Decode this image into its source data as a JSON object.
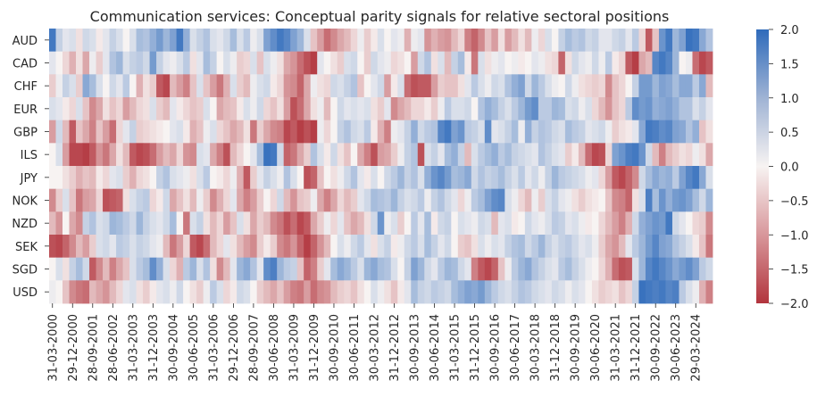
{
  "chart_data": {
    "type": "heatmap",
    "title": "Communication services: Conceptual parity signals for relative sectoral positions",
    "xlabel": "",
    "ylabel": "",
    "rows": [
      "AUD",
      "CAD",
      "CHF",
      "EUR",
      "GBP",
      "ILS",
      "JPY",
      "NOK",
      "NZD",
      "SEK",
      "SGD",
      "USD"
    ],
    "x_tick_labels": [
      "31-03-2000",
      "29-12-2000",
      "28-09-2001",
      "28-06-2002",
      "31-03-2003",
      "31-12-2003",
      "30-09-2004",
      "30-06-2005",
      "31-03-2006",
      "29-12-2006",
      "28-09-2007",
      "30-06-2008",
      "31-03-2009",
      "31-12-2009",
      "30-09-2010",
      "30-06-2011",
      "30-03-2012",
      "31-12-2012",
      "30-09-2013",
      "30-06-2014",
      "31-03-2015",
      "31-12-2015",
      "30-09-2016",
      "30-06-2017",
      "30-03-2018",
      "31-12-2018",
      "30-09-2019",
      "30-06-2020",
      "31-03-2021",
      "31-12-2021",
      "30-09-2022",
      "30-06-2023",
      "29-03-2024"
    ],
    "colorbar": {
      "ticks": [
        2.0,
        1.5,
        1.0,
        0.5,
        0.0,
        -0.5,
        -1.0,
        -1.5,
        -2.0
      ],
      "tick_labels": [
        "2.0",
        "1.5",
        "1.0",
        "0.5",
        "0.0",
        "−0.5",
        "−1.0",
        "−1.5",
        "−2.0"
      ],
      "vmin": -2.0,
      "vmax": 2.0
    },
    "colormap": {
      "low": "#b2343d",
      "mid": "#f7f3f2",
      "high": "#2f6bbb"
    },
    "num_columns": 99,
    "values": [
      [
        1.8,
        0.5,
        0.2,
        0.3,
        -0.2,
        0.4,
        0.3,
        -0.1,
        0.2,
        0.5,
        0.3,
        0.0,
        0.3,
        0.8,
        0.7,
        1.0,
        1.3,
        0.9,
        1.2,
        1.8,
        1.0,
        0.3,
        0.5,
        0.7,
        0.3,
        0.2,
        0.4,
        0.8,
        0.3,
        0.6,
        0.1,
        0.3,
        1.2,
        1.5,
        1.8,
        1.6,
        1.2,
        0.9,
        0.3,
        -0.5,
        -0.9,
        -1.4,
        -1.1,
        -0.8,
        -0.6,
        -0.3,
        0.1,
        -0.4,
        -0.1,
        0.3,
        0.0,
        0.2,
        0.1,
        -0.7,
        0.1,
        0.2,
        -1.0,
        -0.7,
        -0.9,
        -1.0,
        -0.6,
        -0.3,
        -1.2,
        -1.5,
        -1.1,
        -0.5,
        -0.9,
        -0.2,
        -0.9,
        -0.6,
        -0.2,
        -0.6,
        0.1,
        -0.3,
        0.3,
        0.0,
        0.5,
        0.8,
        0.6,
        0.7,
        0.4,
        0.5,
        0.2,
        0.2,
        0.4,
        0.5,
        0.2,
        0.6,
        -0.3,
        -1.6,
        -0.5,
        1.4,
        1.8,
        0.9,
        1.2,
        1.9,
        1.8,
        1.1,
        0.7
      ],
      [
        0.2,
        0.0,
        -0.3,
        -0.7,
        -0.2,
        -0.8,
        0.1,
        -0.4,
        0.2,
        0.7,
        0.9,
        0.3,
        0.5,
        0.6,
        0.4,
        1.3,
        0.5,
        0.2,
        0.1,
        0.3,
        0.6,
        -0.2,
        0.2,
        0.8,
        0.5,
        0.0,
        0.3,
        0.1,
        -0.4,
        -0.3,
        0.3,
        -0.5,
        0.3,
        0.1,
        -0.2,
        -0.8,
        -1.0,
        -1.4,
        -1.7,
        -1.9,
        0.2,
        0.0,
        -0.2,
        -0.4,
        0.3,
        0.4,
        0.0,
        -0.4,
        0.4,
        0.2,
        0.1,
        -0.3,
        -0.2,
        0.0,
        -0.9,
        0.4,
        0.7,
        -0.2,
        0.3,
        -0.6,
        0.5,
        0.8,
        -0.1,
        -1.3,
        0.3,
        -0.2,
        0.1,
        0.2,
        0.0,
        0.1,
        -0.1,
        0.0,
        0.2,
        0.1,
        -0.2,
        -0.3,
        -1.5,
        -0.2,
        0.4,
        0.2,
        0.1,
        0.4,
        0.1,
        0.6,
        -0.1,
        -0.3,
        -1.6,
        -1.9,
        -0.8,
        -0.6,
        1.6,
        1.8,
        1.6,
        0.9,
        0.0,
        0.1,
        -1.4,
        -1.8,
        -1.6
      ],
      [
        -0.4,
        0.1,
        0.5,
        0.3,
        -0.4,
        1.1,
        0.8,
        0.3,
        0.0,
        0.4,
        0.2,
        0.6,
        0.0,
        -0.7,
        -0.2,
        -0.4,
        -1.6,
        -1.8,
        -0.6,
        -0.9,
        -1.2,
        -0.5,
        0.3,
        -0.5,
        -0.9,
        -1.3,
        -0.7,
        0.3,
        -0.4,
        -0.6,
        0.1,
        0.3,
        0.4,
        -0.1,
        -0.3,
        -1.0,
        -1.1,
        -1.5,
        -0.8,
        0.1,
        -0.2,
        -0.3,
        0.4,
        0.3,
        0.5,
        0.7,
        -0.5,
        0.0,
        0.2,
        0.4,
        -0.9,
        -0.1,
        0.3,
        -1.4,
        -1.7,
        -1.6,
        -1.6,
        -0.9,
        -0.4,
        -0.5,
        -0.5,
        -0.2,
        0.2,
        0.6,
        0.3,
        0.1,
        0.4,
        0.3,
        0.7,
        1.0,
        1.2,
        0.4,
        0.9,
        0.6,
        0.3,
        0.1,
        0.0,
        0.4,
        0.1,
        -0.2,
        -0.3,
        -0.4,
        -0.3,
        -1.1,
        -0.5,
        -0.3,
        0.0,
        0.5,
        1.3,
        1.3,
        0.9,
        1.2,
        1.1,
        0.8,
        1.1,
        1.1,
        0.6,
        1.1,
        -0.6
      ],
      [
        0.3,
        0.2,
        -0.1,
        -0.3,
        0.3,
        -0.5,
        -1.1,
        -0.8,
        -0.2,
        -0.5,
        -0.3,
        -0.9,
        -0.6,
        -0.3,
        -0.2,
        0.3,
        -0.4,
        -0.6,
        0.2,
        -0.1,
        -0.3,
        -0.5,
        -0.4,
        0.3,
        0.0,
        -0.8,
        -0.6,
        -0.5,
        -0.1,
        0.3,
        0.1,
        0.4,
        -0.3,
        -0.5,
        -0.2,
        -0.9,
        -1.7,
        -1.4,
        -0.8,
        -0.2,
        0.1,
        -0.6,
        0.0,
        0.4,
        0.2,
        0.3,
        0.2,
        0.3,
        -0.2,
        -0.4,
        0.2,
        -1.1,
        -0.8,
        -0.6,
        -0.3,
        -0.3,
        -0.1,
        -0.4,
        0.1,
        0.6,
        0.3,
        0.3,
        0.4,
        0.0,
        0.7,
        1.0,
        0.8,
        0.5,
        0.3,
        0.6,
        0.9,
        1.3,
        1.5,
        0.6,
        0.6,
        0.9,
        0.8,
        0.3,
        0.4,
        0.1,
        0.3,
        -0.3,
        -0.6,
        -1.0,
        -0.5,
        -0.3,
        0.6,
        1.5,
        1.3,
        1.4,
        1.0,
        1.1,
        1.2,
        1.0,
        0.7,
        0.7,
        0.3,
        0.5,
        0.2
      ],
      [
        -0.9,
        0.4,
        -0.6,
        -1.6,
        -0.5,
        -0.8,
        -1.2,
        -0.5,
        -0.9,
        -1.4,
        -0.3,
        0.2,
        0.5,
        -0.4,
        -0.3,
        -0.2,
        -0.1,
        0.0,
        0.2,
        0.3,
        -0.1,
        -0.7,
        -0.5,
        0.1,
        0.3,
        -0.3,
        -0.5,
        -0.8,
        -0.6,
        -0.2,
        -1.3,
        -0.4,
        -0.8,
        -1.1,
        -1.2,
        -1.8,
        -1.6,
        -1.9,
        -1.7,
        -1.9,
        0.1,
        -0.3,
        0.0,
        0.5,
        0.7,
        0.4,
        0.3,
        0.6,
        -0.1,
        -0.7,
        -1.2,
        0.1,
        0.2,
        0.5,
        1.0,
        0.4,
        0.6,
        0.7,
        1.6,
        1.8,
        1.2,
        1.4,
        0.6,
        0.5,
        0.3,
        1.5,
        0.2,
        0.3,
        0.5,
        0.8,
        0.1,
        1.0,
        0.5,
        0.7,
        0.6,
        0.4,
        0.3,
        0.8,
        0.6,
        0.5,
        0.2,
        0.3,
        0.4,
        0.1,
        -0.4,
        -0.2,
        -0.1,
        0.2,
        1.1,
        1.8,
        1.7,
        1.5,
        1.6,
        1.2,
        1.1,
        0.7,
        1.0,
        -0.5,
        -0.2
      ],
      [
        0.0,
        0.3,
        -0.9,
        -1.8,
        -1.8,
        -1.9,
        -1.6,
        -1.0,
        -1.3,
        -0.8,
        -0.2,
        -0.6,
        -1.6,
        -1.8,
        -1.7,
        -1.4,
        -0.9,
        -0.6,
        -0.8,
        -0.3,
        -1.0,
        -1.1,
        0.3,
        0.2,
        -0.8,
        -1.2,
        -1.7,
        -0.6,
        -0.3,
        0.0,
        0.2,
        0.8,
        1.9,
        1.8,
        0.4,
        -1.5,
        -1.3,
        -0.8,
        -0.4,
        0.7,
        0.3,
        -0.1,
        0.4,
        -0.2,
        -0.5,
        0.0,
        -0.8,
        -1.2,
        -1.7,
        -0.9,
        -0.8,
        -0.4,
        0.1,
        0.5,
        0.7,
        -1.7,
        0.3,
        0.5,
        0.2,
        0.8,
        1.0,
        0.5,
        -0.6,
        0.3,
        0.6,
        0.8,
        1.0,
        0.6,
        0.8,
        0.5,
        0.4,
        0.3,
        0.2,
        0.7,
        0.5,
        0.3,
        0.2,
        -0.4,
        -0.1,
        -0.6,
        -1.4,
        -1.8,
        -1.7,
        -0.3,
        1.2,
        1.4,
        1.7,
        1.8,
        1.4,
        0.4,
        -0.6,
        -1.2,
        -0.6,
        -0.4,
        -0.2,
        -0.3,
        0.1,
        -0.2,
        -0.8
      ],
      [
        0.0,
        0.0,
        -0.2,
        -0.4,
        -0.7,
        -0.5,
        -0.6,
        -0.1,
        -0.3,
        0.2,
        0.3,
        -0.4,
        -0.7,
        -0.3,
        -0.2,
        0.0,
        0.5,
        0.7,
        0.3,
        0.2,
        0.1,
        -0.2,
        0.3,
        0.6,
        0.0,
        -0.1,
        -0.3,
        0.1,
        -0.7,
        -1.6,
        -0.4,
        0.2,
        0.5,
        0.3,
        0.1,
        0.7,
        0.3,
        0.0,
        -1.7,
        -1.5,
        -0.5,
        0.0,
        -0.2,
        0.1,
        0.4,
        0.7,
        0.2,
        -0.1,
        0.3,
        0.0,
        0.4,
        0.6,
        0.9,
        0.5,
        0.7,
        0.3,
        1.0,
        1.4,
        1.6,
        1.3,
        0.8,
        0.9,
        1.1,
        0.4,
        0.7,
        0.5,
        0.6,
        0.8,
        0.5,
        0.3,
        0.6,
        0.2,
        0.4,
        0.1,
        0.5,
        0.9,
        0.6,
        0.5,
        0.4,
        0.3,
        0.1,
        0.2,
        -0.3,
        -0.9,
        -1.6,
        -1.8,
        -1.5,
        -1.1,
        0.4,
        0.8,
        1.1,
        0.9,
        1.0,
        0.6,
        1.2,
        1.6,
        1.8,
        1.1,
        0.3
      ],
      [
        -1.1,
        -0.4,
        0.3,
        -0.5,
        -1.3,
        -0.9,
        -0.8,
        -0.3,
        -1.7,
        -1.6,
        -1.5,
        -0.2,
        0.3,
        0.5,
        0.6,
        -0.3,
        -0.1,
        0.4,
        -0.8,
        -0.5,
        -0.2,
        -0.6,
        0.1,
        -0.4,
        -1.1,
        -0.7,
        -0.3,
        0.2,
        -0.8,
        -1.2,
        -0.9,
        -0.4,
        0.0,
        -0.3,
        0.4,
        -0.6,
        -1.0,
        -0.5,
        -0.4,
        0.1,
        -0.8,
        -1.2,
        -0.8,
        -0.3,
        -0.6,
        -0.4,
        0.2,
        0.4,
        0.8,
        0.7,
        0.6,
        0.9,
        0.5,
        0.3,
        0.4,
        0.6,
        0.1,
        0.5,
        0.7,
        0.4,
        0.2,
        -0.3,
        0.1,
        0.6,
        0.8,
        1.2,
        1.5,
        1.6,
        0.3,
        0.1,
        -0.3,
        -0.6,
        0.1,
        -0.4,
        0.3,
        0.5,
        0.2,
        0.1,
        -0.2,
        -0.4,
        -0.2,
        -0.1,
        0.0,
        -0.5,
        -1.1,
        -1.2,
        -1.5,
        -0.2,
        0.3,
        1.7,
        0.8,
        1.4,
        1.0,
        1.3,
        1.4,
        1.2,
        0.8,
        0.4,
        0.9
      ],
      [
        -0.6,
        -1.0,
        0.0,
        -0.8,
        -1.1,
        0.5,
        0.7,
        0.3,
        0.4,
        0.9,
        0.8,
        0.6,
        0.4,
        0.9,
        0.5,
        0.3,
        0.2,
        0.4,
        0.8,
        0.0,
        -1.3,
        0.3,
        0.5,
        -0.2,
        -0.6,
        -0.3,
        -0.9,
        -0.5,
        0.3,
        -0.2,
        -0.8,
        -0.4,
        -0.6,
        -1.1,
        -1.3,
        -1.7,
        -1.4,
        -1.8,
        -1.6,
        -0.8,
        -0.4,
        0.1,
        -0.3,
        0.2,
        -0.5,
        -0.8,
        -0.6,
        -0.2,
        0.4,
        1.4,
        0.1,
        0.3,
        -0.4,
        0.0,
        0.6,
        0.2,
        0.8,
        -0.1,
        0.4,
        0.5,
        0.0,
        0.3,
        0.2,
        0.1,
        0.4,
        0.3,
        -0.6,
        0.2,
        0.3,
        -0.1,
        0.0,
        0.4,
        0.2,
        0.1,
        0.3,
        0.6,
        0.5,
        0.2,
        0.3,
        0.1,
        -0.1,
        0.0,
        -0.3,
        -0.6,
        -0.9,
        -1.2,
        -0.7,
        0.4,
        1.0,
        1.2,
        1.4,
        1.3,
        1.8,
        0.4,
        0.2,
        0.0,
        -0.3,
        -0.4,
        -1.1
      ],
      [
        -1.7,
        -1.8,
        -1.5,
        -1.1,
        -0.6,
        -0.9,
        -0.4,
        0.3,
        0.4,
        0.2,
        0.6,
        0.5,
        0.3,
        0.5,
        0.4,
        0.2,
        0.1,
        -0.6,
        -1.3,
        -0.9,
        -0.3,
        -1.6,
        -1.8,
        -1.4,
        -0.6,
        -0.3,
        0.2,
        -0.2,
        -0.6,
        -0.9,
        -1.1,
        -0.4,
        -0.1,
        -0.4,
        -1.1,
        -1.3,
        -1.0,
        -1.5,
        -1.9,
        -1.5,
        -1.0,
        -0.6,
        0.0,
        0.3,
        0.1,
        0.4,
        0.6,
        0.2,
        -0.2,
        0.3,
        0.5,
        -0.1,
        0.1,
        0.4,
        0.6,
        0.3,
        0.8,
        0.5,
        0.2,
        0.4,
        0.0,
        -0.4,
        -0.5,
        -0.2,
        0.3,
        0.1,
        0.3,
        0.2,
        0.5,
        0.7,
        0.8,
        0.4,
        0.6,
        0.9,
        0.5,
        0.3,
        0.5,
        0.6,
        0.4,
        0.2,
        0.3,
        0.1,
        -0.4,
        -0.8,
        -1.0,
        -0.6,
        0.2,
        0.6,
        0.9,
        1.3,
        1.6,
        1.2,
        1.1,
        0.7,
        0.5,
        0.3,
        -0.1,
        -0.5,
        -1.3
      ],
      [
        0.0,
        0.3,
        -0.2,
        0.5,
        0.8,
        0.4,
        -1.6,
        -1.1,
        -0.6,
        -1.2,
        -0.8,
        -0.5,
        0.3,
        0.6,
        0.8,
        1.5,
        1.0,
        0.3,
        -0.3,
        -0.7,
        0.6,
        0.9,
        0.3,
        0.7,
        -0.2,
        -1.1,
        -0.6,
        0.2,
        0.9,
        1.1,
        0.7,
        0.2,
        1.5,
        1.7,
        0.9,
        0.6,
        0.5,
        -0.5,
        -1.5,
        -1.2,
        -0.4,
        0.2,
        0.8,
        1.1,
        0.9,
        0.6,
        0.3,
        0.9,
        1.1,
        0.8,
        0.7,
        0.3,
        0.0,
        0.5,
        1.2,
        0.9,
        0.4,
        0.2,
        0.6,
        0.9,
        0.8,
        0.4,
        0.2,
        -1.2,
        -1.6,
        -1.8,
        -1.5,
        -0.5,
        0.1,
        0.6,
        0.9,
        1.1,
        0.7,
        0.5,
        0.3,
        0.2,
        0.6,
        0.8,
        0.5,
        0.3,
        0.1,
        0.0,
        -0.3,
        -0.7,
        -1.4,
        -1.7,
        -1.6,
        0.3,
        0.9,
        1.6,
        1.8,
        1.6,
        1.4,
        1.1,
        1.3,
        1.5,
        1.2,
        0.6,
        0.4
      ],
      [
        0.1,
        0.0,
        -0.5,
        -1.1,
        -1.3,
        -1.4,
        -0.6,
        -0.8,
        -1.0,
        -0.6,
        -0.3,
        0.2,
        0.3,
        -0.2,
        -0.4,
        -0.1,
        0.2,
        0.3,
        0.1,
        0.4,
        0.0,
        -0.2,
        -0.4,
        0.1,
        0.6,
        0.3,
        -0.3,
        -0.1,
        0.4,
        0.3,
        0.0,
        -0.4,
        -0.6,
        -0.8,
        -0.5,
        -0.9,
        -1.2,
        -1.3,
        -0.9,
        -1.4,
        -1.1,
        -1.0,
        -0.6,
        -0.4,
        -0.3,
        -0.5,
        -0.2,
        0.0,
        0.3,
        0.1,
        -0.2,
        -0.5,
        -0.1,
        0.2,
        0.8,
        0.5,
        0.4,
        0.6,
        0.5,
        0.4,
        0.8,
        1.0,
        1.2,
        1.1,
        1.3,
        0.9,
        0.6,
        0.4,
        0.3,
        0.5,
        0.7,
        0.6,
        0.4,
        0.3,
        0.2,
        0.4,
        0.3,
        0.1,
        0.3,
        0.2,
        0.0,
        -0.2,
        -0.4,
        -0.3,
        -0.2,
        -0.5,
        -0.3,
        0.5,
        1.9,
        1.8,
        1.7,
        1.8,
        1.6,
        1.7,
        0.6,
        0.3,
        0.1,
        -0.7,
        -1.2
      ]
    ]
  }
}
